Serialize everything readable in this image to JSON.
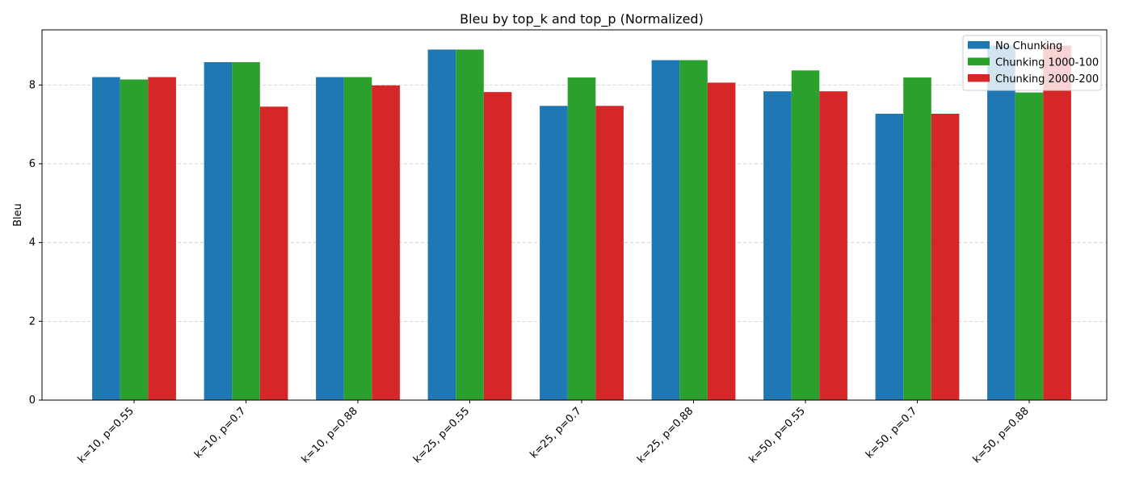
{
  "chart_data": {
    "type": "bar",
    "title": "Bleu by top_k and top_p (Normalized)",
    "xlabel": "",
    "ylabel": "Bleu",
    "ylim": [
      0,
      9.4
    ],
    "yticks": [
      0,
      2,
      4,
      6,
      8
    ],
    "grid": "y-dashed",
    "legend_position": "top-right",
    "categories": [
      "k=10, p=0.55",
      "k=10, p=0.7",
      "k=10, p=0.88",
      "k=25, p=0.55",
      "k=25, p=0.7",
      "k=25, p=0.88",
      "k=50, p=0.55",
      "k=50, p=0.7",
      "k=50, p=0.88"
    ],
    "series": [
      {
        "name": "No Chunking",
        "color": "#1f77b4",
        "values": [
          8.2,
          8.58,
          8.2,
          8.9,
          7.47,
          8.63,
          7.84,
          7.27,
          9.0
        ]
      },
      {
        "name": "Chunking 1000-100",
        "color": "#2ca02c",
        "values": [
          8.14,
          8.58,
          8.2,
          8.9,
          8.19,
          8.63,
          8.37,
          8.19,
          7.81
        ]
      },
      {
        "name": "Chunking 2000-200",
        "color": "#d62728",
        "values": [
          8.2,
          7.45,
          7.99,
          7.82,
          7.47,
          8.06,
          7.84,
          7.27,
          9.0
        ]
      }
    ]
  }
}
